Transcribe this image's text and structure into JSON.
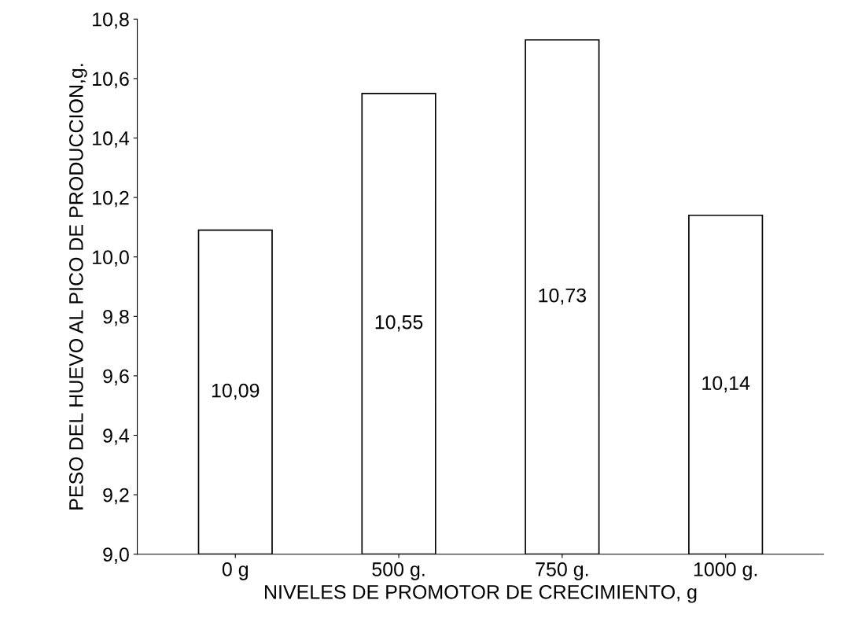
{
  "chart_data": {
    "type": "bar",
    "xlabel": "NIVELES DE PROMOTOR DE CRECIMIENTO, g",
    "ylabel": "PESO DEL HUEVO AL PICO DE PRODUCCION,g.",
    "categories": [
      "0 g",
      "500 g.",
      "750 g.",
      "1000 g."
    ],
    "values": [
      10.09,
      10.55,
      10.73,
      10.14
    ],
    "value_labels": [
      "10,09",
      "10,55",
      "10,73",
      "10,14"
    ],
    "color": "#ffffff",
    "ylim": [
      9.0,
      10.8
    ],
    "yticks": [
      {
        "value": 9.0,
        "label": "9,0"
      },
      {
        "value": 9.2,
        "label": "9,2"
      },
      {
        "value": 9.4,
        "label": "9,4"
      },
      {
        "value": 9.6,
        "label": "9,6"
      },
      {
        "value": 9.8,
        "label": "9,8"
      },
      {
        "value": 10.0,
        "label": "10,0"
      },
      {
        "value": 10.2,
        "label": "10,2"
      },
      {
        "value": 10.4,
        "label": "10,4"
      },
      {
        "value": 10.6,
        "label": "10,6"
      },
      {
        "value": 10.8,
        "label": "10,8"
      }
    ],
    "grid": false
  }
}
